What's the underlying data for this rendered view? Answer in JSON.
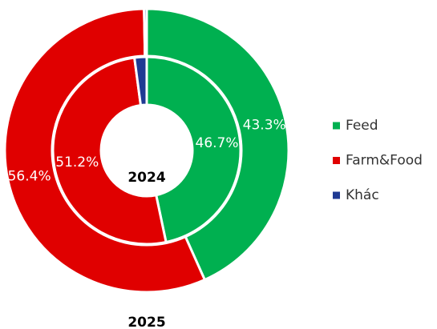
{
  "chart_data": {
    "type": "pie",
    "categories": [
      "Feed",
      "Farm&Food",
      "Khác"
    ],
    "colors": [
      "#00b050",
      "#e00000",
      "#1f3a93"
    ],
    "series": [
      {
        "name": "2025",
        "values": [
          43.3,
          56.4,
          0.3
        ],
        "value_labels": [
          "43.3%",
          "56.4%",
          null
        ]
      },
      {
        "name": "2024",
        "values": [
          46.7,
          51.2,
          2.1
        ],
        "value_labels": [
          "46.7%",
          "51.2%",
          null
        ]
      }
    ]
  }
}
